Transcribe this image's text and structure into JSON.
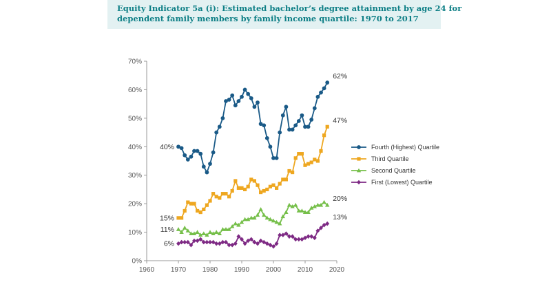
{
  "title": {
    "line1": "Equity Indicator 5a (i): Estimated bachelor’s degree attainment by age 24 for",
    "line2": "dependent family members by family income quartile: 1970 to 2017"
  },
  "chart_data": {
    "type": "line",
    "x_ticks": [
      "1960",
      "1970",
      "1980",
      "1990",
      "2000",
      "2010",
      "2020"
    ],
    "y_ticks": [
      "0%",
      "10%",
      "20%",
      "30%",
      "40%",
      "50%",
      "60%",
      "70%"
    ],
    "xlim": [
      1960,
      2020
    ],
    "ylim": [
      0,
      70
    ],
    "grid": false,
    "legend_position": "right",
    "x": [
      1970,
      1971,
      1972,
      1973,
      1974,
      1975,
      1976,
      1977,
      1978,
      1979,
      1980,
      1981,
      1982,
      1983,
      1984,
      1985,
      1986,
      1987,
      1988,
      1989,
      1990,
      1991,
      1992,
      1993,
      1994,
      1995,
      1996,
      1997,
      1998,
      1999,
      2000,
      2001,
      2002,
      2003,
      2004,
      2005,
      2006,
      2007,
      2008,
      2009,
      2010,
      2011,
      2012,
      2013,
      2014,
      2015,
      2016,
      2017
    ],
    "series": [
      {
        "name": "Fourth (Highest) Quartile",
        "color": "#1a5a87",
        "marker": "circle",
        "start_label": "40%",
        "end_label": "62%",
        "values": [
          40,
          39.5,
          37,
          35.5,
          36.5,
          38.5,
          38.5,
          37.5,
          33,
          31,
          34,
          38,
          45,
          47,
          50,
          56,
          56.5,
          58,
          54.5,
          56,
          57.5,
          60,
          58.5,
          57,
          54,
          55.5,
          48,
          47.5,
          43,
          40,
          36,
          36,
          45,
          51,
          54,
          46,
          46,
          47.5,
          49,
          51,
          47,
          47,
          49.5,
          53.5,
          57.5,
          59,
          60.5,
          62.5
        ]
      },
      {
        "name": "Third Quartile",
        "color": "#eea720",
        "marker": "square",
        "start_label": "15%",
        "end_label": "47%",
        "values": [
          15,
          15,
          17.5,
          20.5,
          20,
          20,
          17.5,
          17,
          18,
          19.5,
          21,
          23.5,
          22.5,
          22,
          23.5,
          23.5,
          22.5,
          24.5,
          28,
          25.5,
          25.5,
          25,
          26,
          28.5,
          28,
          26.5,
          24,
          24.5,
          25,
          26,
          26.5,
          25.5,
          27,
          28.5,
          28.5,
          31.5,
          31,
          36,
          37.5,
          37.5,
          33.5,
          34,
          34.5,
          35.5,
          35,
          38.5,
          44,
          47
        ]
      },
      {
        "name": "Second Quartile",
        "color": "#76bf4a",
        "marker": "triangle",
        "start_label": "11%",
        "end_label": "20%",
        "values": [
          11,
          10,
          11.5,
          10.5,
          9.5,
          9.5,
          10,
          9,
          9.5,
          9,
          10,
          9.5,
          10,
          9.5,
          11,
          11,
          11,
          12,
          13,
          12.5,
          13.5,
          14.5,
          14.5,
          15,
          15,
          16,
          18,
          16,
          15,
          14.5,
          14,
          13.5,
          13,
          15.5,
          17,
          19.5,
          19,
          19.5,
          17.5,
          17.5,
          17,
          17,
          18.5,
          19,
          19.5,
          19.5,
          20.5,
          19.5
        ]
      },
      {
        "name": "First (Lowest) Quartile",
        "color": "#7e2a84",
        "marker": "diamond",
        "start_label": "6%",
        "end_label": "13%",
        "values": [
          6,
          6.5,
          6.5,
          6.5,
          5.5,
          7,
          7,
          7.5,
          6.5,
          6.5,
          6.5,
          6.5,
          6,
          6,
          6.5,
          6.5,
          5.5,
          5.5,
          6,
          8.5,
          7.5,
          6,
          7,
          7.5,
          6.5,
          6,
          7,
          6.5,
          6,
          5.5,
          5,
          6,
          9,
          9,
          9.5,
          8.5,
          8.5,
          7.5,
          7.5,
          7.5,
          8,
          8.5,
          8.5,
          8,
          10.5,
          11.5,
          12.5,
          13
        ]
      }
    ]
  }
}
